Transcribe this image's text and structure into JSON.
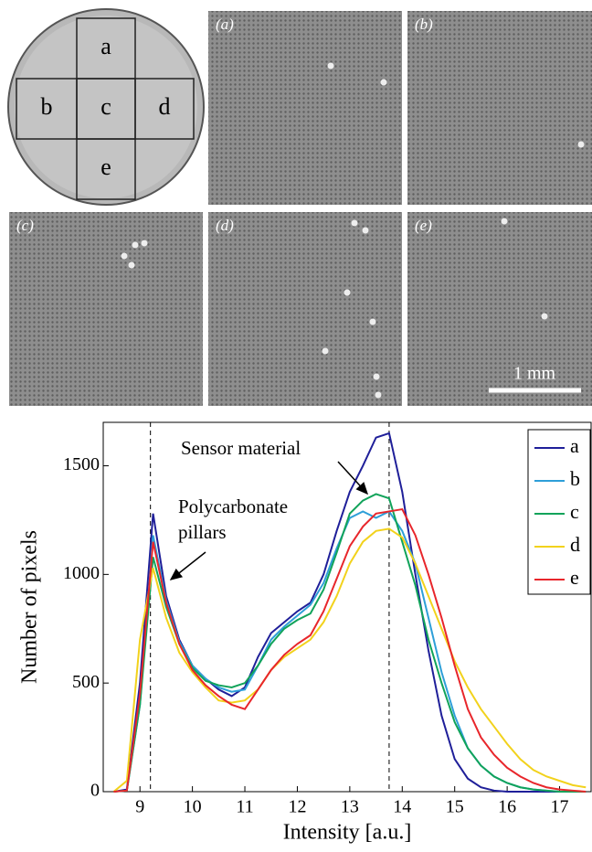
{
  "panels": {
    "disc_labels": [
      "a",
      "b",
      "c",
      "d",
      "e"
    ],
    "image_labels": [
      "(a)",
      "(b)",
      "(c)",
      "(d)",
      "(e)"
    ],
    "scale_bar": "1 mm"
  },
  "chart_data": {
    "type": "line",
    "xlabel": "Intensity [a.u.]",
    "ylabel": "Number of pixels",
    "annotations": [
      "Sensor material",
      "Polycarbonate",
      "pillars"
    ],
    "vlines": [
      9.2,
      13.75
    ],
    "legend": "top-right",
    "xlim": [
      8.3,
      17.6
    ],
    "xticks": [
      9,
      10,
      11,
      12,
      13,
      14,
      15,
      16,
      17
    ],
    "ylim": [
      0,
      1700
    ],
    "yticks": [
      0,
      500,
      1000,
      1500
    ],
    "x": [
      8.5,
      8.75,
      9,
      9.25,
      9.5,
      9.75,
      10,
      10.25,
      10.5,
      10.75,
      11,
      11.25,
      11.5,
      11.75,
      12,
      12.25,
      12.5,
      12.75,
      13,
      13.25,
      13.5,
      13.75,
      14,
      14.25,
      14.5,
      14.75,
      15,
      15.25,
      15.5,
      15.75,
      16,
      16.25,
      16.5,
      16.75,
      17,
      17.25,
      17.5
    ],
    "series": [
      {
        "name": "a",
        "color": "#1f1f99",
        "values": [
          0,
          10,
          500,
          1280,
          900,
          700,
          580,
          520,
          470,
          440,
          480,
          620,
          730,
          780,
          830,
          870,
          1000,
          1200,
          1380,
          1500,
          1630,
          1650,
          1380,
          1000,
          650,
          350,
          150,
          60,
          20,
          5,
          0,
          0,
          0,
          0,
          0,
          0,
          0
        ]
      },
      {
        "name": "b",
        "color": "#2e9fd8",
        "values": [
          0,
          5,
          400,
          1180,
          880,
          690,
          580,
          520,
          480,
          460,
          470,
          580,
          700,
          760,
          810,
          860,
          960,
          1120,
          1260,
          1290,
          1260,
          1290,
          1200,
          1050,
          800,
          550,
          350,
          200,
          120,
          70,
          40,
          20,
          10,
          5,
          0,
          0,
          0
        ]
      },
      {
        "name": "c",
        "color": "#11a35a",
        "values": [
          0,
          5,
          400,
          1080,
          850,
          680,
          570,
          510,
          490,
          480,
          500,
          580,
          680,
          750,
          790,
          820,
          930,
          1100,
          1280,
          1340,
          1370,
          1350,
          1150,
          950,
          700,
          500,
          320,
          200,
          120,
          70,
          40,
          20,
          10,
          5,
          0,
          0,
          0
        ]
      },
      {
        "name": "d",
        "color": "#f2d21c",
        "values": [
          0,
          50,
          700,
          1030,
          800,
          640,
          550,
          480,
          420,
          410,
          420,
          470,
          560,
          620,
          660,
          700,
          780,
          900,
          1050,
          1150,
          1200,
          1210,
          1170,
          1050,
          900,
          750,
          600,
          480,
          380,
          300,
          220,
          150,
          100,
          70,
          50,
          30,
          20
        ]
      },
      {
        "name": "e",
        "color": "#e8262b",
        "values": [
          0,
          5,
          450,
          1150,
          870,
          680,
          560,
          490,
          440,
          400,
          380,
          470,
          560,
          630,
          680,
          720,
          830,
          980,
          1130,
          1220,
          1280,
          1290,
          1300,
          1180,
          1000,
          800,
          580,
          380,
          250,
          170,
          110,
          70,
          40,
          20,
          10,
          5,
          0
        ]
      }
    ]
  }
}
